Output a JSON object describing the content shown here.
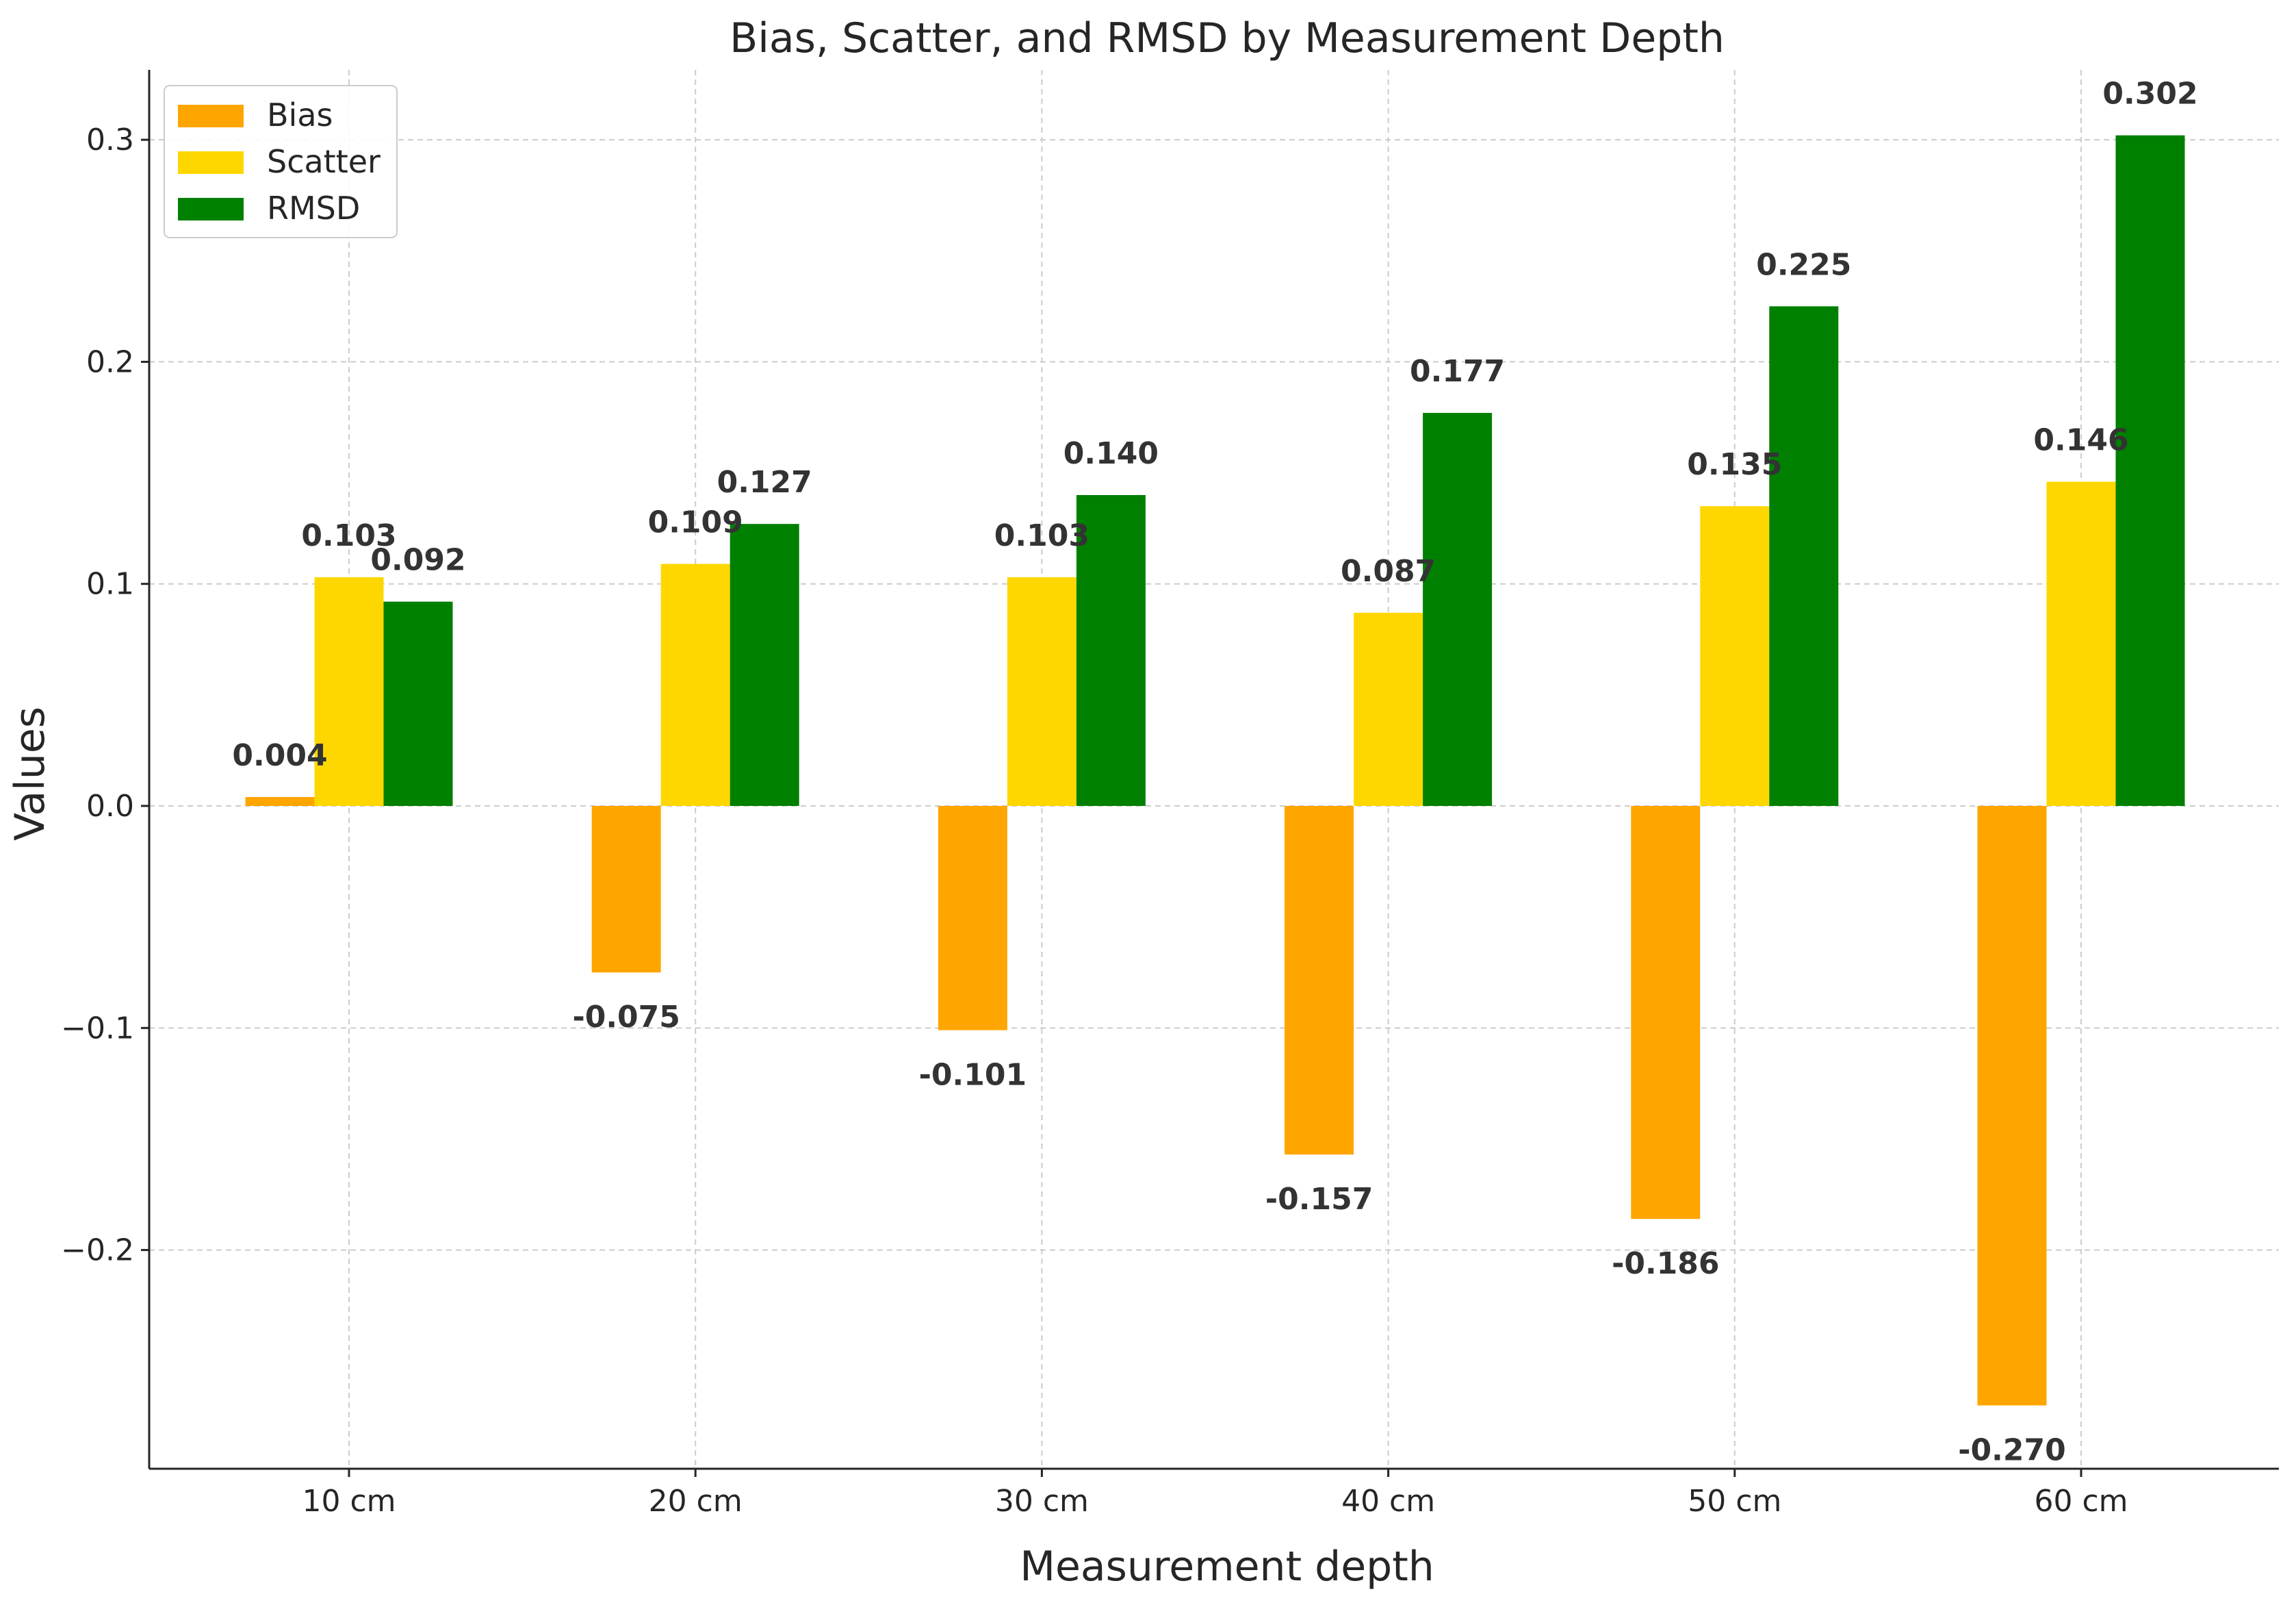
{
  "chart_data": {
    "type": "bar",
    "title": "Bias, Scatter, and RMSD by Measurement Depth",
    "xlabel": "Measurement depth",
    "ylabel": "Values",
    "categories": [
      "10 cm",
      "20 cm",
      "30 cm",
      "40 cm",
      "50 cm",
      "60 cm"
    ],
    "series": [
      {
        "name": "Bias",
        "color": "#FFA500",
        "values": [
          0.004,
          -0.075,
          -0.101,
          -0.157,
          -0.186,
          -0.27
        ],
        "labels": [
          "0.004",
          "-0.075",
          "-0.101",
          "-0.157",
          "-0.186",
          "-0.270"
        ]
      },
      {
        "name": "Scatter",
        "color": "#FFD700",
        "values": [
          0.103,
          0.109,
          0.103,
          0.087,
          0.135,
          0.146
        ],
        "labels": [
          "0.103",
          "0.109",
          "0.103",
          "0.087",
          "0.135",
          "0.146"
        ]
      },
      {
        "name": "RMSD",
        "color": "#008000",
        "values": [
          0.092,
          0.127,
          0.14,
          0.177,
          0.225,
          0.302
        ],
        "labels": [
          "0.092",
          "0.127",
          "0.140",
          "0.177",
          "0.225",
          "0.302"
        ]
      }
    ],
    "ylim": [
      -0.2985,
      0.3315
    ],
    "yticks": [
      -0.2,
      -0.1,
      0.0,
      0.1,
      0.2,
      0.3
    ],
    "ytick_labels": [
      "−0.2",
      "−0.1",
      "0.0",
      "0.1",
      "0.2",
      "0.3"
    ],
    "grid": true,
    "legend_position": "top-left"
  }
}
